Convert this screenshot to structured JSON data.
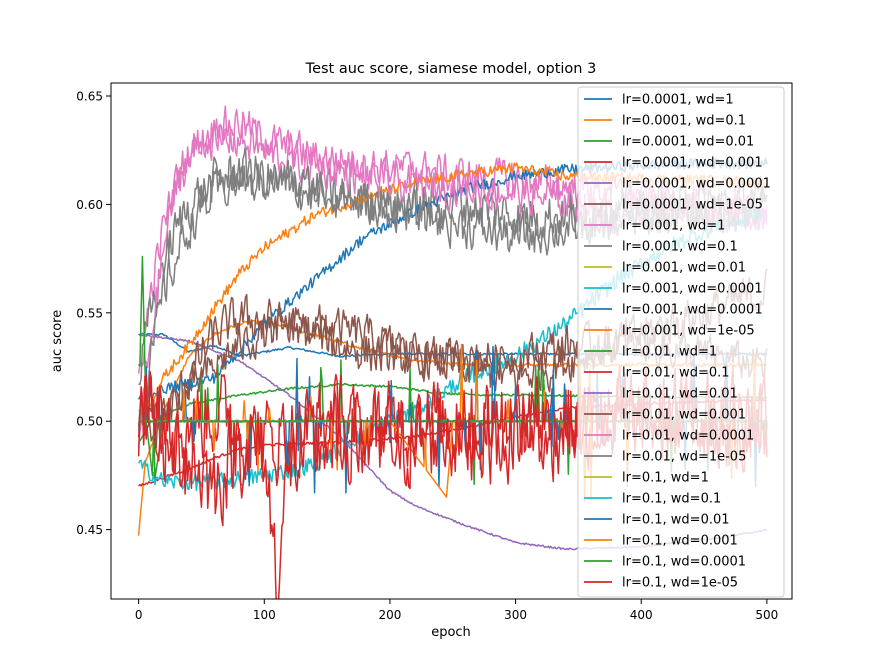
{
  "chart_data": {
    "type": "line",
    "title": "Test auc score, siamese model, option 3",
    "xlabel": "epoch",
    "ylabel": "auc score",
    "xlim": [
      -22,
      520
    ],
    "ylim": [
      0.418,
      0.656
    ],
    "xticks": [
      0,
      100,
      200,
      300,
      400,
      500
    ],
    "yticks": [
      0.45,
      0.5,
      0.55,
      0.6,
      0.65
    ],
    "ytick_labels": [
      "0.45",
      "0.50",
      "0.55",
      "0.60",
      "0.65"
    ],
    "grid": false,
    "legend_position": "upper-right",
    "series": [
      {
        "name": "lr=0.0001, wd=1",
        "color": "#1f77b4",
        "style": "stable",
        "noise": 0.0005,
        "points": [
          [
            0,
            0.54
          ],
          [
            20,
            0.54
          ],
          [
            40,
            0.532
          ],
          [
            60,
            0.535
          ],
          [
            80,
            0.53
          ],
          [
            120,
            0.534
          ],
          [
            160,
            0.53
          ],
          [
            200,
            0.531
          ],
          [
            240,
            0.531
          ],
          [
            300,
            0.531
          ],
          [
            360,
            0.531
          ],
          [
            420,
            0.531
          ],
          [
            500,
            0.531
          ]
        ]
      },
      {
        "name": "lr=0.0001, wd=0.1",
        "color": "#ff7f0e",
        "style": "stable",
        "noise": 0.0008,
        "points": [
          [
            0,
            0.448
          ],
          [
            5,
            0.48
          ],
          [
            20,
            0.505
          ],
          [
            40,
            0.53
          ],
          [
            60,
            0.54
          ],
          [
            80,
            0.545
          ],
          [
            100,
            0.546
          ],
          [
            140,
            0.54
          ],
          [
            180,
            0.533
          ],
          [
            220,
            0.528
          ],
          [
            260,
            0.526
          ],
          [
            300,
            0.526
          ],
          [
            360,
            0.526
          ],
          [
            420,
            0.526
          ],
          [
            500,
            0.526
          ]
        ]
      },
      {
        "name": "lr=0.0001, wd=0.01",
        "color": "#2ca02c",
        "style": "stable",
        "noise": 0.0005,
        "points": [
          [
            0,
            0.49
          ],
          [
            10,
            0.5
          ],
          [
            40,
            0.508
          ],
          [
            80,
            0.512
          ],
          [
            120,
            0.515
          ],
          [
            160,
            0.517
          ],
          [
            200,
            0.516
          ],
          [
            240,
            0.513
          ],
          [
            280,
            0.512
          ],
          [
            320,
            0.512
          ],
          [
            400,
            0.511
          ],
          [
            500,
            0.511
          ]
        ]
      },
      {
        "name": "lr=0.0001, wd=0.001",
        "color": "#d62728",
        "style": "stable",
        "noise": 0.0006,
        "points": [
          [
            0,
            0.47
          ],
          [
            20,
            0.474
          ],
          [
            40,
            0.478
          ],
          [
            60,
            0.483
          ],
          [
            80,
            0.487
          ],
          [
            100,
            0.489
          ],
          [
            140,
            0.49
          ],
          [
            180,
            0.491
          ],
          [
            220,
            0.493
          ],
          [
            260,
            0.497
          ],
          [
            300,
            0.502
          ],
          [
            340,
            0.506
          ],
          [
            400,
            0.508
          ],
          [
            500,
            0.51
          ]
        ]
      },
      {
        "name": "lr=0.0001, wd=0.0001",
        "color": "#9467bd",
        "style": "stable",
        "noise": 0.0004,
        "points": [
          [
            0,
            0.54
          ],
          [
            40,
            0.537
          ],
          [
            80,
            0.528
          ],
          [
            120,
            0.512
          ],
          [
            160,
            0.493
          ],
          [
            200,
            0.468
          ],
          [
            220,
            0.461
          ],
          [
            260,
            0.452
          ],
          [
            300,
            0.444
          ],
          [
            340,
            0.441
          ],
          [
            400,
            0.442
          ],
          [
            460,
            0.446
          ],
          [
            500,
            0.45
          ]
        ]
      },
      {
        "name": "lr=0.0001, wd=1e-05",
        "color": "#8c564b",
        "style": "noisy",
        "noise": 0.009,
        "points": [
          [
            0,
            0.505
          ],
          [
            10,
            0.49
          ],
          [
            20,
            0.5
          ],
          [
            40,
            0.52
          ],
          [
            60,
            0.54
          ],
          [
            80,
            0.548
          ],
          [
            120,
            0.545
          ],
          [
            160,
            0.535
          ],
          [
            200,
            0.53
          ],
          [
            240,
            0.528
          ],
          [
            300,
            0.52
          ],
          [
            350,
            0.53
          ],
          [
            400,
            0.54
          ],
          [
            450,
            0.55
          ],
          [
            500,
            0.56
          ]
        ]
      },
      {
        "name": "lr=0.001, wd=1",
        "color": "#e377c2",
        "style": "noisy",
        "noise": 0.008,
        "points": [
          [
            0,
            0.52
          ],
          [
            10,
            0.56
          ],
          [
            20,
            0.59
          ],
          [
            30,
            0.61
          ],
          [
            40,
            0.625
          ],
          [
            60,
            0.635
          ],
          [
            80,
            0.638
          ],
          [
            100,
            0.63
          ],
          [
            140,
            0.622
          ],
          [
            200,
            0.617
          ],
          [
            260,
            0.613
          ],
          [
            300,
            0.612
          ],
          [
            340,
            0.608
          ],
          [
            400,
            0.603
          ],
          [
            460,
            0.6
          ],
          [
            500,
            0.598
          ]
        ]
      },
      {
        "name": "lr=0.001, wd=0.1",
        "color": "#7f7f7f",
        "style": "noisy",
        "noise": 0.01,
        "points": [
          [
            0,
            0.52
          ],
          [
            10,
            0.55
          ],
          [
            20,
            0.575
          ],
          [
            40,
            0.6
          ],
          [
            60,
            0.61
          ],
          [
            80,
            0.615
          ],
          [
            100,
            0.612
          ],
          [
            140,
            0.605
          ],
          [
            200,
            0.6
          ],
          [
            260,
            0.6
          ],
          [
            300,
            0.595
          ],
          [
            340,
            0.595
          ],
          [
            400,
            0.598
          ],
          [
            460,
            0.6
          ],
          [
            500,
            0.6
          ]
        ]
      },
      {
        "name": "lr=0.001, wd=0.01",
        "color": "#bcbd22",
        "style": "stable",
        "noise": 0.0004,
        "points": [
          [
            0,
            0.505
          ],
          [
            10,
            0.5
          ],
          [
            100,
            0.5
          ],
          [
            200,
            0.5
          ],
          [
            300,
            0.5
          ],
          [
            400,
            0.5
          ],
          [
            500,
            0.5
          ]
        ]
      },
      {
        "name": "lr=0.001, wd=0.0001",
        "color": "#17becf",
        "style": "stable",
        "noise": 0.004,
        "points": [
          [
            0,
            0.48
          ],
          [
            20,
            0.472
          ],
          [
            60,
            0.472
          ],
          [
            100,
            0.475
          ],
          [
            140,
            0.48
          ],
          [
            180,
            0.495
          ],
          [
            220,
            0.505
          ],
          [
            260,
            0.52
          ],
          [
            300,
            0.53
          ],
          [
            340,
            0.545
          ],
          [
            380,
            0.565
          ],
          [
            420,
            0.58
          ],
          [
            460,
            0.59
          ],
          [
            500,
            0.596
          ]
        ]
      },
      {
        "name": "lr=0.001, wd=0.0001",
        "color": "#1f77b4",
        "style": "stable",
        "noise": 0.0025,
        "points": [
          [
            0,
            0.51
          ],
          [
            20,
            0.515
          ],
          [
            60,
            0.52
          ],
          [
            100,
            0.545
          ],
          [
            140,
            0.565
          ],
          [
            180,
            0.585
          ],
          [
            220,
            0.597
          ],
          [
            260,
            0.607
          ],
          [
            300,
            0.613
          ],
          [
            340,
            0.616
          ],
          [
            400,
            0.618
          ],
          [
            460,
            0.619
          ],
          [
            500,
            0.619
          ]
        ]
      },
      {
        "name": "lr=0.001, wd=1e-05",
        "color": "#ff7f0e",
        "style": "stable",
        "noise": 0.0025,
        "points": [
          [
            0,
            0.5
          ],
          [
            20,
            0.52
          ],
          [
            40,
            0.535
          ],
          [
            60,
            0.552
          ],
          [
            80,
            0.568
          ],
          [
            100,
            0.58
          ],
          [
            140,
            0.595
          ],
          [
            180,
            0.603
          ],
          [
            220,
            0.61
          ],
          [
            260,
            0.614
          ],
          [
            300,
            0.617
          ],
          [
            340,
            0.613
          ],
          [
            400,
            0.612
          ],
          [
            460,
            0.611
          ],
          [
            500,
            0.61
          ]
        ]
      },
      {
        "name": "lr=0.01, wd=1",
        "color": "#2ca02c",
        "style": "flat-spikes",
        "noise": 0.012,
        "points": [
          [
            0,
            0.5
          ],
          [
            3,
            0.576
          ],
          [
            6,
            0.5
          ],
          [
            12,
            0.47
          ],
          [
            20,
            0.5
          ],
          [
            500,
            0.5
          ]
        ]
      },
      {
        "name": "lr=0.01, wd=0.1",
        "color": "#d62728",
        "style": "noisy",
        "noise": 0.018,
        "points": [
          [
            0,
            0.5
          ],
          [
            10,
            0.51
          ],
          [
            30,
            0.495
          ],
          [
            60,
            0.505
          ],
          [
            100,
            0.49
          ],
          [
            140,
            0.5
          ],
          [
            180,
            0.495
          ],
          [
            220,
            0.5
          ],
          [
            260,
            0.5
          ],
          [
            300,
            0.5
          ],
          [
            400,
            0.5
          ],
          [
            500,
            0.5
          ]
        ]
      },
      {
        "name": "lr=0.01, wd=0.01",
        "color": "#9467bd",
        "style": "stable",
        "noise": 0.0005,
        "points": [
          [
            0,
            0.5
          ],
          [
            500,
            0.5
          ]
        ]
      },
      {
        "name": "lr=0.01, wd=0.001",
        "color": "#8c564b",
        "style": "noisy",
        "noise": 0.008,
        "points": [
          [
            0,
            0.5
          ],
          [
            20,
            0.505
          ],
          [
            40,
            0.515
          ],
          [
            60,
            0.525
          ],
          [
            80,
            0.535
          ],
          [
            100,
            0.54
          ],
          [
            140,
            0.545
          ],
          [
            180,
            0.54
          ],
          [
            220,
            0.53
          ],
          [
            260,
            0.528
          ],
          [
            300,
            0.53
          ],
          [
            340,
            0.535
          ],
          [
            400,
            0.535
          ],
          [
            460,
            0.53
          ],
          [
            500,
            0.525
          ]
        ]
      },
      {
        "name": "lr=0.01, wd=0.0001",
        "color": "#e377c2",
        "style": "noisy",
        "noise": 0.008,
        "points": [
          [
            0,
            0.49
          ],
          [
            10,
            0.54
          ],
          [
            20,
            0.58
          ],
          [
            30,
            0.61
          ],
          [
            50,
            0.63
          ],
          [
            80,
            0.63
          ],
          [
            120,
            0.62
          ],
          [
            200,
            0.61
          ],
          [
            260,
            0.608
          ],
          [
            300,
            0.605
          ],
          [
            360,
            0.6
          ],
          [
            420,
            0.598
          ],
          [
            500,
            0.596
          ]
        ]
      },
      {
        "name": "lr=0.01, wd=1e-05",
        "color": "#7f7f7f",
        "style": "noisy",
        "noise": 0.009,
        "points": [
          [
            0,
            0.5
          ],
          [
            20,
            0.56
          ],
          [
            40,
            0.59
          ],
          [
            60,
            0.605
          ],
          [
            80,
            0.612
          ],
          [
            120,
            0.61
          ],
          [
            200,
            0.598
          ],
          [
            260,
            0.59
          ],
          [
            300,
            0.585
          ],
          [
            360,
            0.59
          ],
          [
            420,
            0.595
          ],
          [
            500,
            0.598
          ]
        ]
      },
      {
        "name": "lr=0.1, wd=1",
        "color": "#bcbd22",
        "style": "stable",
        "noise": 0.0003,
        "points": [
          [
            0,
            0.5
          ],
          [
            500,
            0.5
          ]
        ]
      },
      {
        "name": "lr=0.1, wd=0.1",
        "color": "#17becf",
        "style": "stable",
        "noise": 0.0004,
        "points": [
          [
            0,
            0.5
          ],
          [
            500,
            0.5
          ]
        ]
      },
      {
        "name": "lr=0.1, wd=0.01",
        "color": "#1f77b4",
        "style": "flat-spikes",
        "noise": 0.014,
        "points": [
          [
            0,
            0.5
          ],
          [
            60,
            0.5
          ],
          [
            120,
            0.5
          ],
          [
            180,
            0.5
          ],
          [
            240,
            0.5
          ],
          [
            300,
            0.5
          ],
          [
            360,
            0.5
          ],
          [
            420,
            0.5
          ],
          [
            500,
            0.5
          ]
        ]
      },
      {
        "name": "lr=0.1, wd=0.001",
        "color": "#ff7f0e",
        "style": "flat-spikes",
        "noise": 0.016,
        "points": [
          [
            0,
            0.5
          ],
          [
            100,
            0.5
          ],
          [
            200,
            0.5
          ],
          [
            245,
            0.465
          ],
          [
            250,
            0.5
          ],
          [
            300,
            0.5
          ],
          [
            400,
            0.5
          ],
          [
            500,
            0.5
          ]
        ]
      },
      {
        "name": "lr=0.1, wd=0.0001",
        "color": "#2ca02c",
        "style": "stable",
        "noise": 0.0003,
        "points": [
          [
            0,
            0.5
          ],
          [
            500,
            0.5
          ]
        ]
      },
      {
        "name": "lr=0.1, wd=1e-05",
        "color": "#d62728",
        "style": "noisy",
        "noise": 0.02,
        "points": [
          [
            0,
            0.5
          ],
          [
            10,
            0.52
          ],
          [
            20,
            0.49
          ],
          [
            40,
            0.485
          ],
          [
            60,
            0.47
          ],
          [
            80,
            0.49
          ],
          [
            100,
            0.485
          ],
          [
            110,
            0.43
          ],
          [
            120,
            0.48
          ],
          [
            160,
            0.495
          ],
          [
            200,
            0.49
          ],
          [
            240,
            0.495
          ],
          [
            300,
            0.495
          ],
          [
            360,
            0.5
          ],
          [
            420,
            0.5
          ],
          [
            500,
            0.5
          ]
        ]
      }
    ]
  }
}
